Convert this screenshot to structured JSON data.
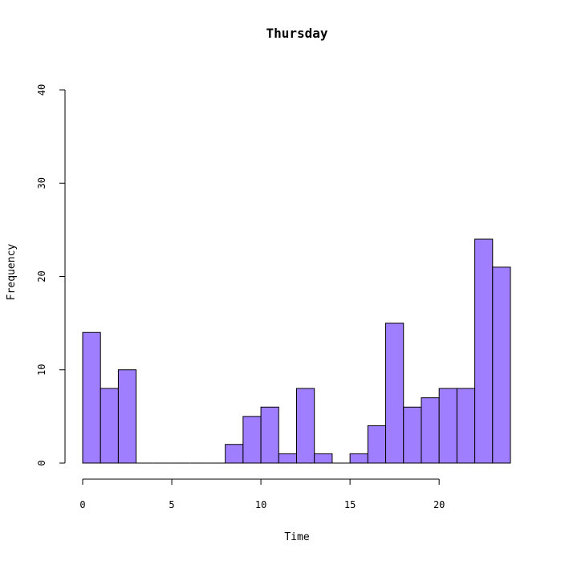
{
  "chart_data": {
    "type": "bar",
    "title": "Thursday",
    "xlabel": "Time",
    "ylabel": "Frequency",
    "bar_color": "#9f7fff",
    "xlim": [
      0,
      24
    ],
    "ylim": [
      0,
      40
    ],
    "xticks": [
      "0",
      "5",
      "10",
      "15",
      "20"
    ],
    "yticks": [
      "0",
      "10",
      "20",
      "30",
      "40"
    ],
    "bins": [
      {
        "start": 0,
        "end": 1,
        "value": 14
      },
      {
        "start": 1,
        "end": 2,
        "value": 8
      },
      {
        "start": 2,
        "end": 3,
        "value": 10
      },
      {
        "start": 3,
        "end": 4,
        "value": 0
      },
      {
        "start": 4,
        "end": 5,
        "value": 0
      },
      {
        "start": 5,
        "end": 6,
        "value": 0
      },
      {
        "start": 6,
        "end": 7,
        "value": 0
      },
      {
        "start": 7,
        "end": 8,
        "value": 0
      },
      {
        "start": 8,
        "end": 9,
        "value": 2
      },
      {
        "start": 9,
        "end": 10,
        "value": 5
      },
      {
        "start": 10,
        "end": 11,
        "value": 6
      },
      {
        "start": 11,
        "end": 12,
        "value": 1
      },
      {
        "start": 12,
        "end": 13,
        "value": 8
      },
      {
        "start": 13,
        "end": 14,
        "value": 1
      },
      {
        "start": 14,
        "end": 15,
        "value": 0
      },
      {
        "start": 15,
        "end": 16,
        "value": 1
      },
      {
        "start": 16,
        "end": 17,
        "value": 4
      },
      {
        "start": 17,
        "end": 18,
        "value": 15
      },
      {
        "start": 18,
        "end": 19,
        "value": 6
      },
      {
        "start": 19,
        "end": 20,
        "value": 7
      },
      {
        "start": 20,
        "end": 21,
        "value": 8
      },
      {
        "start": 21,
        "end": 22,
        "value": 8
      },
      {
        "start": 22,
        "end": 23,
        "value": 24
      },
      {
        "start": 23,
        "end": 24,
        "value": 21
      }
    ]
  }
}
